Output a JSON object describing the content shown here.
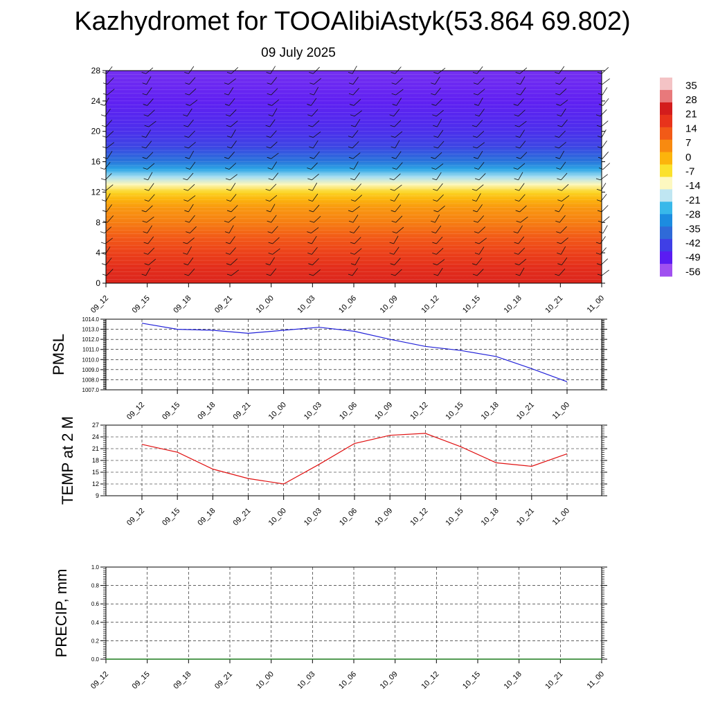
{
  "header": {
    "title": "Kazhydromet for TOOAlibiAstyk(53.864 69.802)",
    "date": "09 July 2025"
  },
  "chart_data": [
    {
      "type": "heatmap",
      "name": "temperature-wind-cross-section",
      "x_ticks": [
        "09_12",
        "09_15",
        "09_18",
        "09_21",
        "10_00",
        "10_03",
        "10_06",
        "10_09",
        "10_12",
        "10_15",
        "10_18",
        "10_21",
        "11_00"
      ],
      "y_ticks": [
        0,
        4,
        8,
        12,
        16,
        20,
        24,
        28
      ],
      "ylim": [
        0,
        28
      ],
      "colorbar": {
        "labels": [
          35,
          28,
          21,
          14,
          7,
          0,
          -7,
          -14,
          -21,
          -28,
          -35,
          -42,
          -49,
          -56
        ],
        "colors": [
          "#f4c3c5",
          "#e8797b",
          "#d31c1c",
          "#e8331b",
          "#f25a17",
          "#f88a10",
          "#fcb40c",
          "#fbe12c",
          "#fdf8c0",
          "#bfe6f2",
          "#38b8ea",
          "#1c8ce0",
          "#2f6ad8",
          "#3f3fe6",
          "#5a1cf2",
          "#a050f0"
        ],
        "range": [
          -60,
          38
        ]
      },
      "temperature_profile_by_height": [
        [
          0,
          22
        ],
        [
          2,
          20
        ],
        [
          4,
          16
        ],
        [
          6,
          12
        ],
        [
          8,
          7
        ],
        [
          10,
          3
        ],
        [
          11,
          -1
        ],
        [
          12,
          -6
        ],
        [
          13,
          -14
        ],
        [
          14,
          -22
        ],
        [
          15,
          -30
        ],
        [
          16,
          -38
        ],
        [
          18,
          -46
        ],
        [
          20,
          -50
        ],
        [
          24,
          -54
        ],
        [
          28,
          -56
        ]
      ],
      "wind_barbs": "present"
    },
    {
      "type": "line",
      "name": "pmsl",
      "ylabel": "PMSL",
      "x": [
        "09_12",
        "09_15",
        "09_18",
        "09_21",
        "10_00",
        "10_03",
        "10_06",
        "10_09",
        "10_12",
        "10_15",
        "10_18",
        "10_21",
        "11_00"
      ],
      "y": [
        1013.6,
        1013.0,
        1012.9,
        1012.6,
        1012.9,
        1013.2,
        1012.8,
        1012.0,
        1011.3,
        1010.9,
        1010.3,
        1009.1,
        1007.8
      ],
      "ylim": [
        1007.0,
        1014.0
      ],
      "y_ticks": [
        "1007.0",
        "1008.0",
        "1009.0",
        "1010.0",
        "1011.0",
        "1012.0",
        "1013.0",
        "1014.0"
      ],
      "color": "#2020d8",
      "grid": true
    },
    {
      "type": "line",
      "name": "temp-2m",
      "ylabel": "TEMP at 2 M",
      "x": [
        "09_12",
        "09_15",
        "09_18",
        "09_21",
        "10_00",
        "10_03",
        "10_06",
        "10_09",
        "10_12",
        "10_15",
        "10_18",
        "10_21",
        "11_00"
      ],
      "y": [
        22.1,
        20.1,
        15.8,
        13.4,
        12.0,
        17.0,
        22.3,
        24.4,
        24.9,
        21.5,
        17.4,
        16.5,
        19.7
      ],
      "ylim": [
        9,
        27
      ],
      "y_ticks": [
        "9",
        "12",
        "15",
        "18",
        "21",
        "24",
        "27"
      ],
      "color": "#e01010",
      "grid": true
    },
    {
      "type": "line",
      "name": "precip",
      "ylabel": "PRECIP, mm",
      "x": [
        "09_12",
        "09_15",
        "09_18",
        "09_21",
        "10_00",
        "10_03",
        "10_06",
        "10_09",
        "10_12",
        "10_15",
        "10_18",
        "10_21",
        "11_00"
      ],
      "y": [
        0,
        0,
        0,
        0,
        0,
        0,
        0,
        0,
        0,
        0,
        0,
        0,
        0
      ],
      "ylim": [
        0,
        1.0
      ],
      "y_ticks": [
        "0.0",
        "0.2",
        "0.4",
        "0.6",
        "0.8",
        "1.0"
      ],
      "color": "#1a7a1a",
      "grid": true
    }
  ]
}
